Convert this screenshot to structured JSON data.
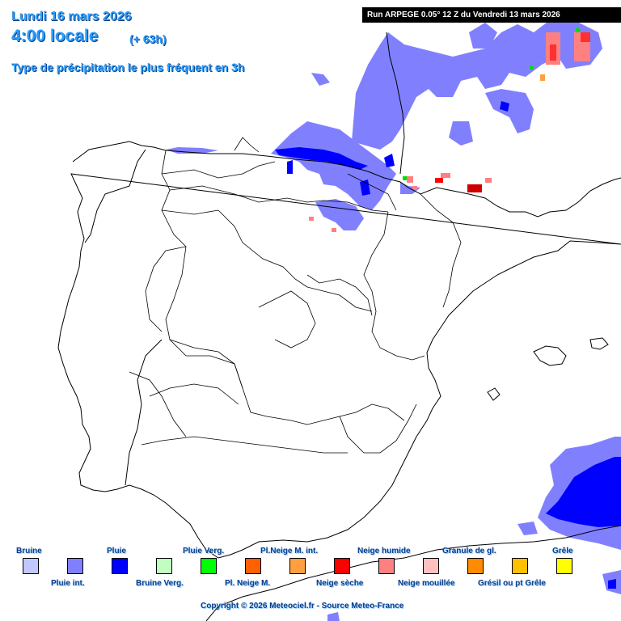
{
  "header": {
    "date": "Lundi 16 mars 2026",
    "local_time": "4:00 locale",
    "offset": "(+ 63h)",
    "product": "Type de précipitation le plus fréquent en 3h"
  },
  "run_info": "Run ARPEGE 0.05° 12 Z du Vendredi 13 mars 2026",
  "legend": [
    {
      "label": "Bruine",
      "color": "#c0c8ff"
    },
    {
      "label": "Pluie int.",
      "color": "#8080ff"
    },
    {
      "label": "Pluie",
      "color": "#0000ff"
    },
    {
      "label": "Bruine Verg.",
      "color": "#c0ffc0"
    },
    {
      "label": "Pluie Verg.",
      "color": "#00ff00"
    },
    {
      "label": "Pl. Neige M.",
      "color": "#ff6000"
    },
    {
      "label": "Pl.Neige M. int.",
      "color": "#ffa040"
    },
    {
      "label": "Neige sèche",
      "color": "#ff0000"
    },
    {
      "label": "Neige humide",
      "color": "#ff8080"
    },
    {
      "label": "Neige mouillée",
      "color": "#ffc0c0"
    },
    {
      "label": "Granule de gl.",
      "color": "#ff8c00"
    },
    {
      "label": "Grésil ou pt Grêle",
      "color": "#ffc000"
    },
    {
      "label": "Grêle",
      "color": "#ffff00"
    }
  ],
  "copyright": "Copyright © 2026 Meteociel.fr - Source Meteo-France"
}
